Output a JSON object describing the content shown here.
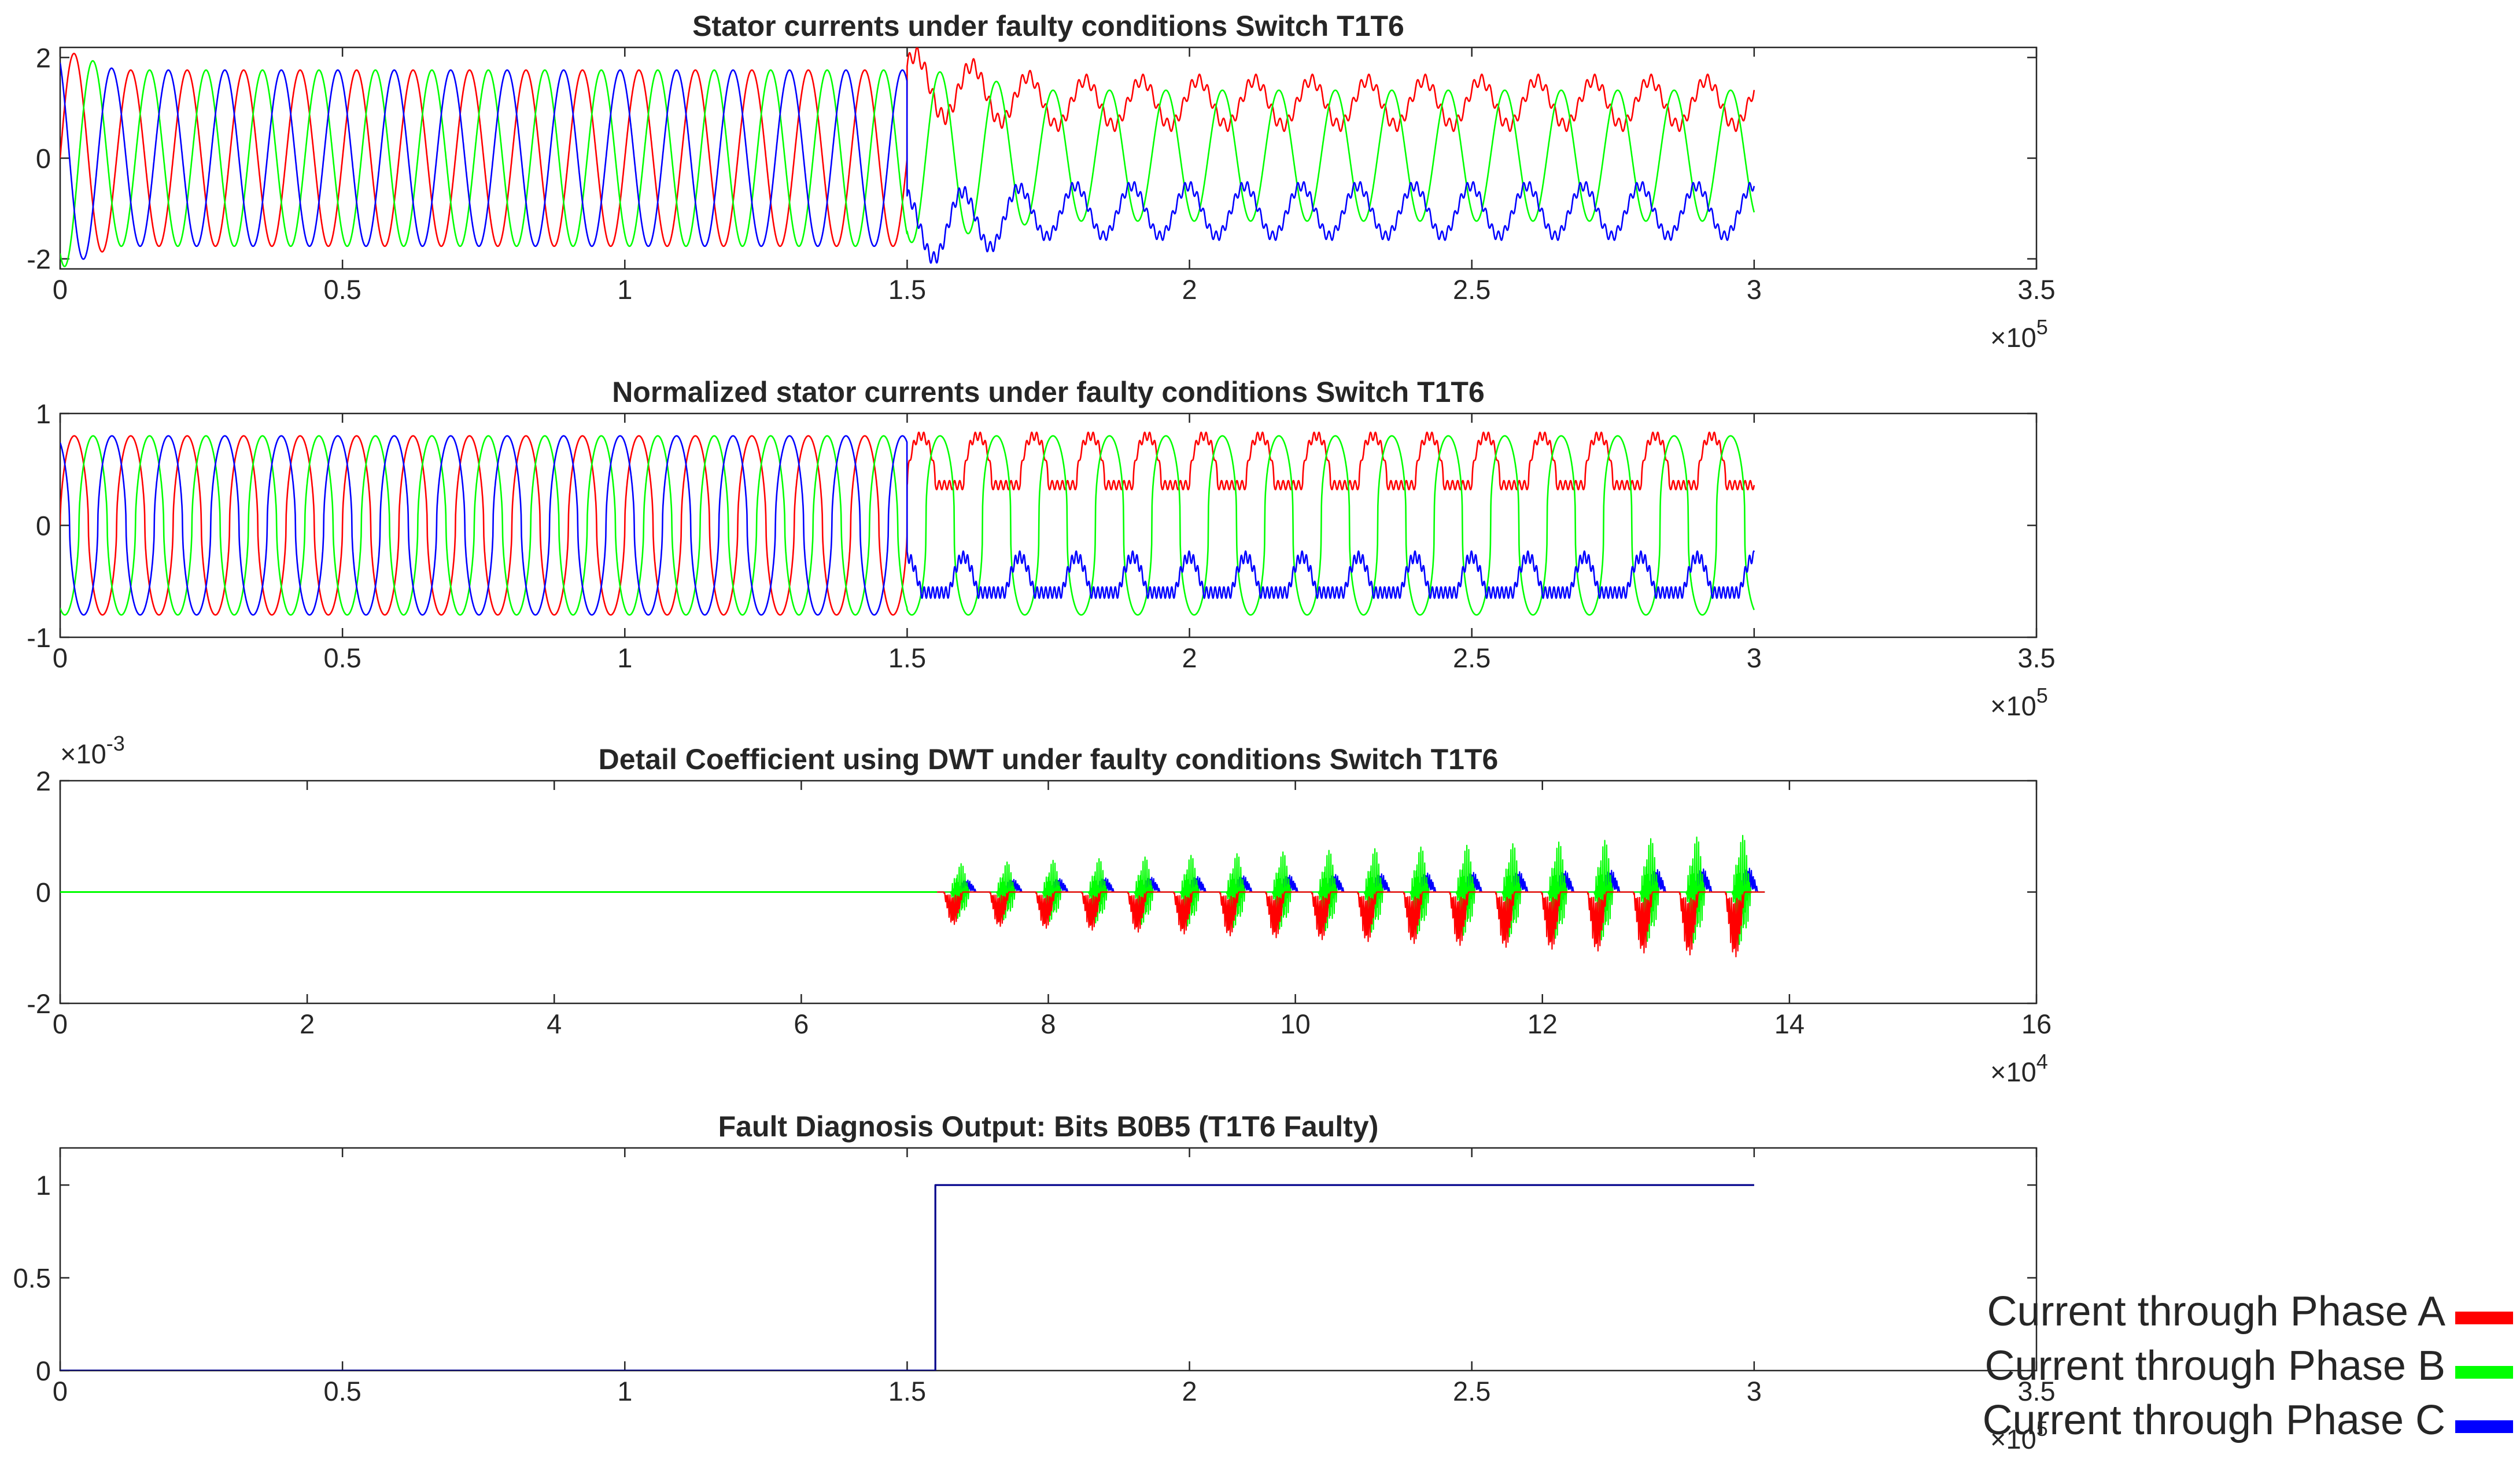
{
  "chart_data": [
    {
      "type": "line",
      "title": "Stator currents under faulty conditions Switch T1T6",
      "xlim": [
        0,
        3.5
      ],
      "ylim": [
        -2.2,
        2.2
      ],
      "xticks": [
        0,
        0.5,
        1,
        1.5,
        2,
        2.5,
        3,
        3.5
      ],
      "xtick_labels": [
        "0",
        "0.5",
        "1",
        "1.5",
        "2",
        "2.5",
        "3",
        "3.5"
      ],
      "yticks": [
        -2,
        0,
        2
      ],
      "ytick_labels": [
        "-2",
        "0",
        "2"
      ],
      "x_exponent": "×10",
      "x_exponent_power": "5",
      "y_exponent": "",
      "y_exponent_power": "",
      "signal": "currents",
      "cycles": 30,
      "pre_amp": 1.75,
      "fault_x": 1.5,
      "end_x": 3.0,
      "series": [
        {
          "name": "Phase A",
          "color": "#ff0000"
        },
        {
          "name": "Phase B",
          "color": "#00ff00"
        },
        {
          "name": "Phase C",
          "color": "#0000ff"
        }
      ]
    },
    {
      "type": "line",
      "title": "Normalized stator currents under faulty conditions Switch T1T6",
      "xlim": [
        0,
        3.5
      ],
      "ylim": [
        -1,
        1
      ],
      "xticks": [
        0,
        0.5,
        1,
        1.5,
        2,
        2.5,
        3,
        3.5
      ],
      "xtick_labels": [
        "0",
        "0.5",
        "1",
        "1.5",
        "2",
        "2.5",
        "3",
        "3.5"
      ],
      "yticks": [
        -1,
        0,
        1
      ],
      "ytick_labels": [
        "-1",
        "0",
        "1"
      ],
      "x_exponent": "×10",
      "x_exponent_power": "5",
      "y_exponent": "",
      "y_exponent_power": "",
      "signal": "normalized",
      "cycles": 30,
      "pre_amp": 0.8,
      "fault_x": 1.5,
      "end_x": 3.0,
      "series": [
        {
          "name": "Phase A",
          "color": "#ff0000"
        },
        {
          "name": "Phase B",
          "color": "#00ff00"
        },
        {
          "name": "Phase C",
          "color": "#0000ff"
        }
      ]
    },
    {
      "type": "line",
      "title": "Detail Coefficient using DWT under faulty conditions Switch T1T6",
      "xlim": [
        0,
        16
      ],
      "ylim": [
        -2,
        2
      ],
      "xticks": [
        0,
        2,
        4,
        6,
        8,
        10,
        12,
        14,
        16
      ],
      "xtick_labels": [
        "0",
        "2",
        "4",
        "6",
        "8",
        "10",
        "12",
        "14",
        "16"
      ],
      "yticks": [
        -2,
        0,
        2
      ],
      "ytick_labels": [
        "-2",
        "0",
        "2"
      ],
      "x_exponent": "×10",
      "x_exponent_power": "4",
      "y_exponent": "×10",
      "y_exponent_power": "-3",
      "signal": "dwt",
      "fault_x": 7.1,
      "end_x": 13.8,
      "bursts": 18,
      "series": [
        {
          "name": "Phase A",
          "color": "#ff0000"
        },
        {
          "name": "Phase B",
          "color": "#00ff00"
        },
        {
          "name": "Phase C",
          "color": "#0000ff"
        }
      ]
    },
    {
      "type": "line",
      "title": "Fault Diagnosis Output: Bits B0B5 (T1T6 Faulty)",
      "xlim": [
        0,
        3.5
      ],
      "ylim": [
        0,
        1.2
      ],
      "xticks": [
        0,
        0.5,
        1,
        1.5,
        2,
        2.5,
        3,
        3.5
      ],
      "xtick_labels": [
        "0",
        "0.5",
        "1",
        "1.5",
        "2",
        "2.5",
        "3",
        "3.5"
      ],
      "yticks": [
        0,
        0.5,
        1
      ],
      "ytick_labels": [
        "0",
        "0.5",
        "1"
      ],
      "x_exponent": "×10",
      "x_exponent_power": "5",
      "y_exponent": "",
      "y_exponent_power": "",
      "signal": "step",
      "series": [
        {
          "name": "Bits B0B5",
          "color": "#00008b",
          "x": [
            0,
            1.55,
            1.55,
            3.0
          ],
          "y": [
            0,
            0,
            1,
            1
          ]
        }
      ]
    }
  ],
  "legend": {
    "placement": "bottom-right",
    "items": [
      {
        "label": "Current through Phase A",
        "color": "#ff0000"
      },
      {
        "label": "Current through Phase B",
        "color": "#00ff00"
      },
      {
        "label": "Current through Phase C",
        "color": "#0000ff"
      }
    ]
  }
}
